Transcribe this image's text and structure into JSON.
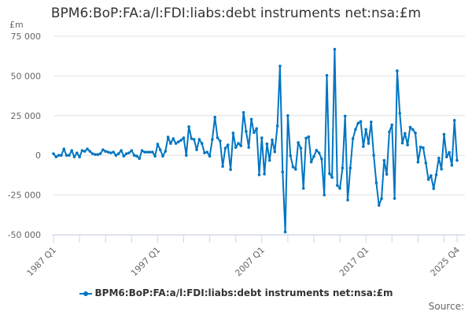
{
  "chart_data": {
    "type": "line",
    "title": "BPM6:BoP:FA:a/l:FDI:liabs:debt instruments net:nsa:£m",
    "ylabel": "£m",
    "xlabel": "",
    "x_start": "1987 Q1",
    "x_end": "2025 Q4",
    "x_tick_labels": [
      "1987 Q1",
      "1997 Q1",
      "2007 Q1",
      "2017 Q1",
      "2025 Q4"
    ],
    "y_tick_labels": [
      "75 000",
      "50 000",
      "25 000",
      "0",
      "-25 000",
      "-50 000"
    ],
    "y_ticks": [
      75000,
      50000,
      25000,
      0,
      -25000,
      -50000
    ],
    "ylim": [
      -50000,
      75000
    ],
    "grid": true,
    "legend_position": "bottom",
    "series": [
      {
        "name": "BPM6:BoP:FA:a/l:FDI:liabs:debt instruments net:nsa:£m",
        "color": "#0075c2",
        "values": [
          1000,
          -1000,
          0,
          0,
          4000,
          0,
          0,
          3000,
          -1000,
          1500,
          -1000,
          3000,
          2500,
          4000,
          2500,
          1000,
          500,
          500,
          1000,
          3500,
          2500,
          2000,
          1500,
          2000,
          0,
          1000,
          3000,
          -500,
          1000,
          1500,
          3000,
          0,
          -500,
          -2000,
          3000,
          2000,
          2000,
          2000,
          2000,
          -500,
          7000,
          3500,
          -500,
          2500,
          11500,
          7500,
          10500,
          7500,
          8500,
          9500,
          11000,
          0,
          18000,
          10500,
          10000,
          3500,
          10000,
          7500,
          1500,
          2000,
          -500,
          10000,
          24000,
          11000,
          9000,
          -7000,
          4500,
          6500,
          -9000,
          14000,
          5000,
          7500,
          6000,
          27000,
          15000,
          5000,
          22700,
          14300,
          16800,
          -12300,
          11000,
          -11800,
          7200,
          -3200,
          9700,
          2200,
          18500,
          56200,
          -10500,
          -48300,
          25000,
          -300,
          -7300,
          -8800,
          8000,
          4500,
          -20800,
          10800,
          11700,
          -4200,
          -700,
          3200,
          1500,
          -2300,
          -25000,
          50300,
          -11500,
          -14000,
          66800,
          -19000,
          -20800,
          -8000,
          24700,
          -28200,
          -8000,
          10500,
          16300,
          20200,
          21300,
          5500,
          16300,
          7500,
          21000,
          0,
          -17300,
          -31500,
          -27300,
          -3200,
          -12000,
          14800,
          19200,
          -27200,
          53200,
          26500,
          7700,
          13800,
          6500,
          17700,
          16200,
          14000,
          -4300,
          5200,
          4700,
          -4800,
          -15200,
          -12800,
          -21000,
          -12300,
          -1700,
          -8700,
          13200,
          -1000,
          1800,
          -6300,
          22000,
          -3200
        ]
      }
    ]
  },
  "source_label": "Source:"
}
